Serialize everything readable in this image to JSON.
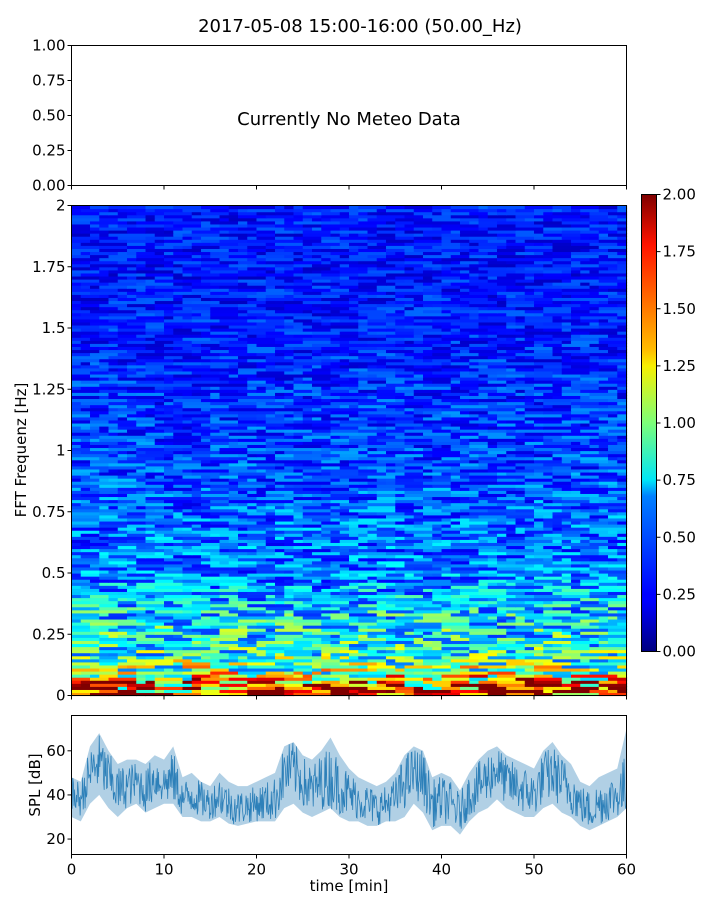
{
  "chart_data": [
    {
      "type": "text",
      "title": "2017-05-08 15:00-16:00 (50.00_Hz)",
      "ylim": [
        0,
        1
      ],
      "yticks": [
        "0.00",
        "0.25",
        "0.50",
        "0.75",
        "1.00"
      ],
      "annotation": "Currently No Meteo Data",
      "grid": false
    },
    {
      "type": "heatmap",
      "ylabel": "FFT Frequenz [Hz]",
      "xlim": [
        0,
        60
      ],
      "ylim": [
        0,
        2
      ],
      "yticks": [
        "0",
        "0.25",
        "0.5",
        "0.75",
        "1",
        "1.25",
        "1.5",
        "1.75",
        "2"
      ],
      "colorbar": {
        "range": [
          0,
          2
        ],
        "ticks": [
          "0.00",
          "0.25",
          "0.50",
          "0.75",
          "1.00",
          "1.25",
          "1.50",
          "1.75",
          "2.00"
        ],
        "colormap": "jet"
      },
      "mean_value_by_frequency": [
        {
          "freq": 0.0,
          "value": 1.9
        },
        {
          "freq": 0.05,
          "value": 1.5
        },
        {
          "freq": 0.1,
          "value": 1.05
        },
        {
          "freq": 0.2,
          "value": 0.8
        },
        {
          "freq": 0.3,
          "value": 0.75
        },
        {
          "freq": 0.4,
          "value": 0.62
        },
        {
          "freq": 0.5,
          "value": 0.5
        },
        {
          "freq": 0.75,
          "value": 0.45
        },
        {
          "freq": 1.0,
          "value": 0.38
        },
        {
          "freq": 1.25,
          "value": 0.34
        },
        {
          "freq": 1.5,
          "value": 0.3
        },
        {
          "freq": 1.75,
          "value": 0.28
        },
        {
          "freq": 2.0,
          "value": 0.3
        }
      ],
      "grid": false
    },
    {
      "type": "line",
      "xlabel": "time [min]",
      "ylabel": "SPL [dB]",
      "xlim": [
        0,
        60
      ],
      "ylim": [
        13,
        76
      ],
      "xticks": [
        "0",
        "10",
        "20",
        "30",
        "40",
        "50",
        "60"
      ],
      "yticks": [
        "20",
        "40",
        "60"
      ],
      "color": "#1f77b4",
      "series": [
        {
          "x": [
            0,
            1,
            2,
            3,
            4,
            5,
            6,
            7,
            8,
            9,
            10,
            11,
            12,
            13,
            14,
            15,
            16,
            17,
            18,
            19,
            20,
            21,
            22,
            23,
            24,
            25,
            26,
            27,
            28,
            29,
            30,
            31,
            32,
            33,
            34,
            35,
            36,
            37,
            38,
            39,
            40,
            41,
            42,
            43,
            44,
            45,
            46,
            47,
            48,
            49,
            50,
            51,
            52,
            53,
            54,
            55,
            56,
            57,
            58,
            59,
            60
          ],
          "values": [
            40,
            38,
            50,
            55,
            48,
            42,
            44,
            46,
            42,
            48,
            45,
            48,
            38,
            40,
            38,
            36,
            40,
            36,
            34,
            35,
            36,
            37,
            38,
            50,
            52,
            46,
            42,
            46,
            48,
            44,
            40,
            38,
            36,
            34,
            36,
            38,
            46,
            50,
            48,
            36,
            38,
            36,
            32,
            40,
            44,
            48,
            52,
            46,
            44,
            42,
            40,
            48,
            50,
            46,
            42,
            36,
            33,
            36,
            38,
            40,
            44
          ],
          "lows": [
            30,
            28,
            36,
            40,
            34,
            30,
            34,
            36,
            32,
            34,
            36,
            36,
            30,
            30,
            28,
            28,
            30,
            27,
            26,
            27,
            28,
            28,
            28,
            34,
            36,
            32,
            30,
            32,
            34,
            30,
            28,
            28,
            26,
            26,
            28,
            28,
            30,
            36,
            32,
            24,
            26,
            26,
            22,
            28,
            32,
            34,
            38,
            34,
            32,
            30,
            30,
            34,
            36,
            32,
            30,
            26,
            24,
            26,
            28,
            30,
            34
          ],
          "highs": [
            48,
            46,
            62,
            68,
            60,
            54,
            56,
            56,
            54,
            58,
            56,
            62,
            48,
            50,
            46,
            44,
            50,
            46,
            44,
            44,
            46,
            48,
            50,
            62,
            64,
            58,
            56,
            60,
            66,
            58,
            52,
            48,
            46,
            44,
            46,
            50,
            58,
            62,
            60,
            48,
            50,
            48,
            42,
            50,
            56,
            60,
            62,
            58,
            56,
            54,
            52,
            60,
            64,
            58,
            54,
            46,
            44,
            48,
            50,
            52,
            70
          ]
        }
      ],
      "grid": false
    }
  ]
}
